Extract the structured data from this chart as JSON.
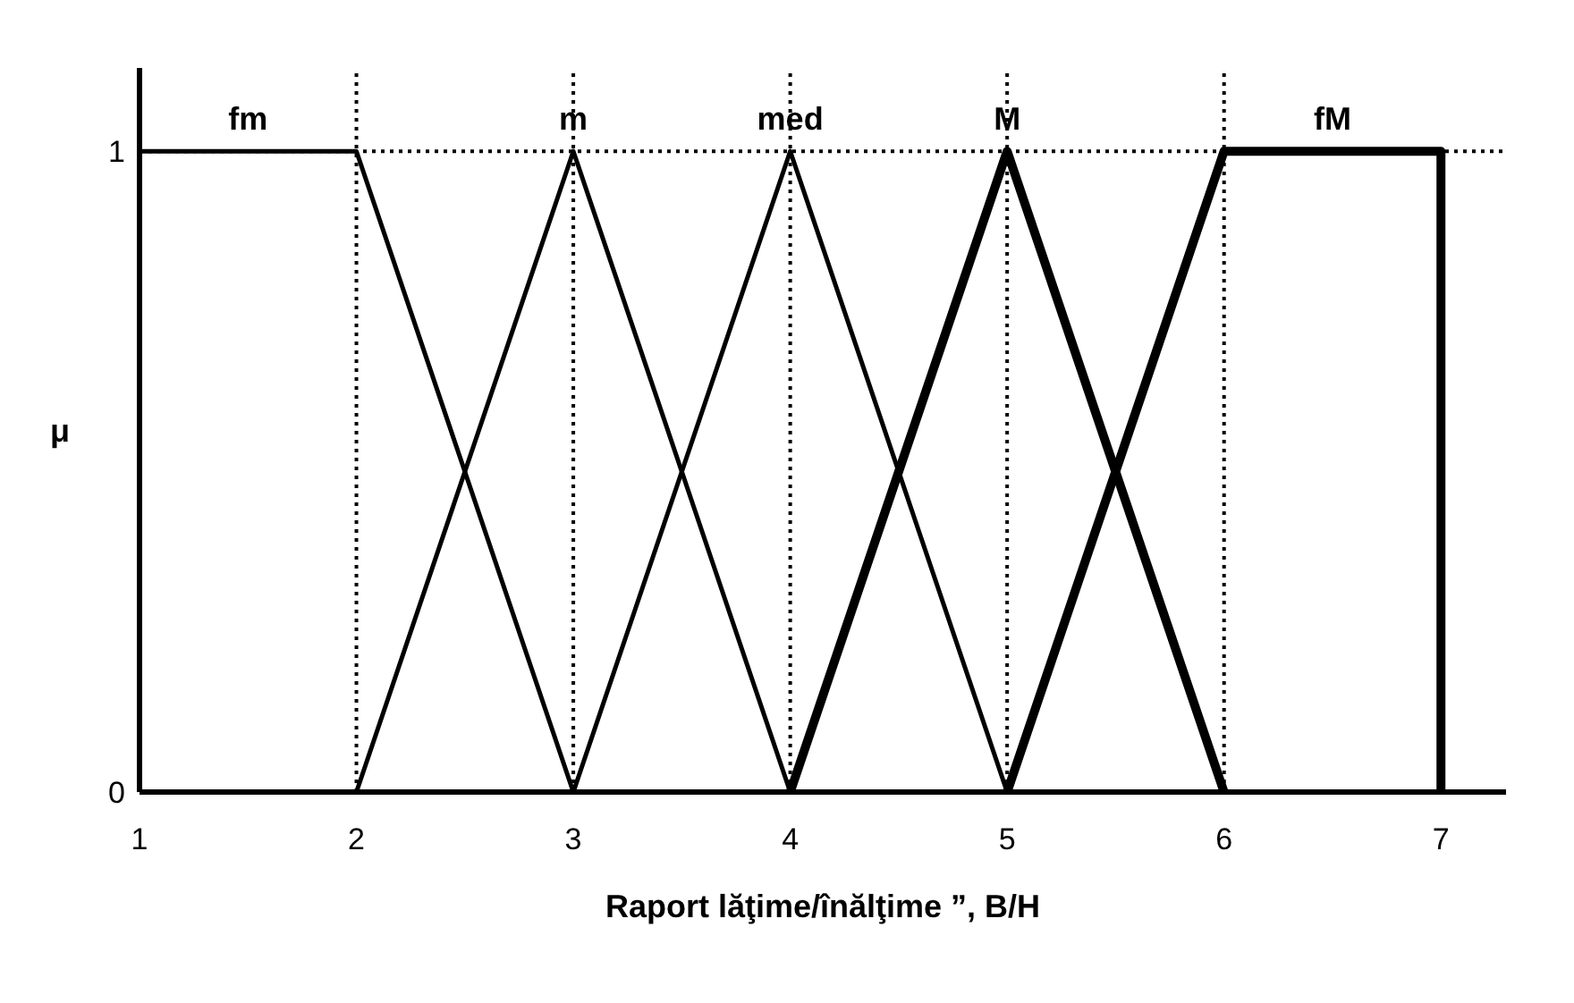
{
  "chart_data": {
    "type": "line",
    "xlabel": "Raport lăţime/înălţime ”, B/H",
    "ylabel": "μ",
    "xlim": [
      1,
      7.3
    ],
    "xticks": [
      1,
      2,
      3,
      4,
      5,
      6,
      7
    ],
    "ylim": [
      0,
      1.13
    ],
    "yticks": [
      0,
      1
    ],
    "series": [
      {
        "name": "fm",
        "color": "#000000",
        "x": [
          1,
          2,
          3
        ],
        "values": [
          1,
          1,
          0
        ]
      },
      {
        "name": "m",
        "color": "#000000",
        "x": [
          2,
          3,
          4
        ],
        "values": [
          0,
          1,
          0
        ]
      },
      {
        "name": "med",
        "color": "#000000",
        "x": [
          3,
          4,
          5
        ],
        "values": [
          0,
          1,
          0
        ]
      },
      {
        "name": "M",
        "color": "#000000",
        "x": [
          4,
          5,
          6
        ],
        "values": [
          0,
          1,
          0
        ]
      },
      {
        "name": "fM",
        "color": "#000000",
        "x": [
          5,
          6,
          7,
          7
        ],
        "values": [
          0,
          1,
          1,
          0
        ]
      }
    ],
    "ref_lines": [
      {
        "axis": "x",
        "value": 2,
        "line_style": "dotted",
        "color": "#000000"
      },
      {
        "axis": "x",
        "value": 3,
        "line_style": "dotted",
        "color": "#000000"
      },
      {
        "axis": "x",
        "value": 4,
        "line_style": "dotted",
        "color": "#000000"
      },
      {
        "axis": "x",
        "value": 5,
        "line_style": "dotted",
        "color": "#000000"
      },
      {
        "axis": "x",
        "value": 6,
        "line_style": "dotted",
        "color": "#000000"
      },
      {
        "axis": "y",
        "value": 1,
        "line_style": "dotted",
        "color": "#000000"
      }
    ],
    "grid": false,
    "legend": false,
    "marker": "none",
    "line_style": "solid"
  }
}
